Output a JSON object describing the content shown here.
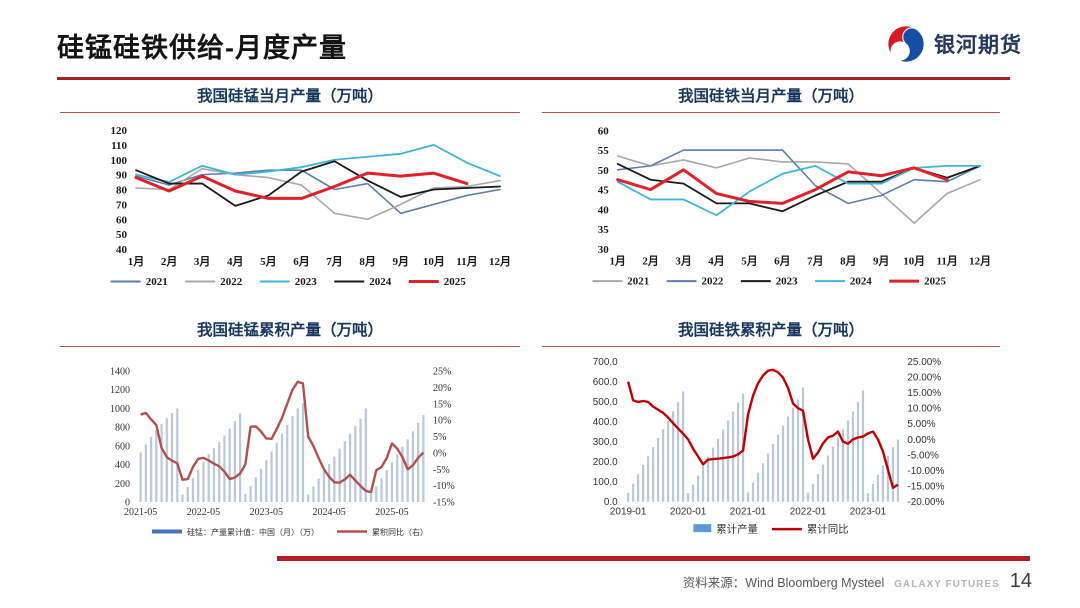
{
  "header": {
    "title": "硅锰硅铁供给-月度产量",
    "brand": "银河期货",
    "accent_color": "#b01e28"
  },
  "footer": {
    "source": "资料来源：Wind Bloomberg Mysteel",
    "brand_en": "GALAXY FUTURES",
    "page_number": "14"
  },
  "chart_data": [
    {
      "type": "line",
      "title": "我国硅锰当月产量（万吨）",
      "categories": [
        "1月",
        "2月",
        "3月",
        "4月",
        "5月",
        "6月",
        "7月",
        "8月",
        "9月",
        "10月",
        "11月",
        "12月"
      ],
      "ylim": [
        40,
        120
      ],
      "ystep": 10,
      "grid": false,
      "legend_position": "bottom",
      "series": [
        {
          "name": "2021",
          "color": "#5b7fad",
          "width": 1.6,
          "values": [
            89,
            83,
            90,
            91,
            93,
            93,
            80,
            84,
            64,
            70,
            76,
            80
          ]
        },
        {
          "name": "2022",
          "color": "#a8a8a8",
          "width": 1.6,
          "values": [
            81,
            80,
            94,
            90,
            88,
            83,
            64,
            60,
            70,
            81,
            82,
            86
          ]
        },
        {
          "name": "2023",
          "color": "#3fb5dc",
          "width": 1.8,
          "values": [
            90,
            85,
            96,
            90,
            92,
            95,
            100,
            102,
            104,
            110,
            98,
            89
          ]
        },
        {
          "name": "2024",
          "color": "#1a1a1a",
          "width": 1.8,
          "values": [
            93,
            84,
            84,
            69,
            76,
            92,
            99,
            86,
            75,
            80,
            81,
            82
          ]
        },
        {
          "name": "2025",
          "color": "#e02128",
          "width": 3,
          "values": [
            88,
            79,
            89,
            79,
            74,
            74,
            82,
            91,
            89,
            91,
            84,
            null
          ]
        }
      ]
    },
    {
      "type": "line",
      "title": "我国硅铁当月产量（万吨）",
      "categories": [
        "1月",
        "2月",
        "3月",
        "4月",
        "5月",
        "6月",
        "7月",
        "8月",
        "9月",
        "10月",
        "11月",
        "12月"
      ],
      "ylim": [
        30,
        60
      ],
      "ystep": 5,
      "grid": false,
      "legend_position": "bottom",
      "series": [
        {
          "name": "2021",
          "color": "#a8a8a8",
          "width": 1.6,
          "values": [
            53.5,
            51,
            52.5,
            50.5,
            53,
            52,
            52,
            51.5,
            44,
            36.5,
            44,
            47.5
          ]
        },
        {
          "name": "2022",
          "color": "#5b7fad",
          "width": 1.6,
          "values": [
            50,
            51,
            55,
            55,
            55,
            55,
            46,
            41.5,
            43.5,
            47.5,
            47,
            51
          ]
        },
        {
          "name": "2023",
          "color": "#1a1a1a",
          "width": 1.8,
          "values": [
            51.5,
            47.5,
            46.5,
            41.5,
            41.5,
            39.5,
            43.5,
            47,
            47,
            50.5,
            48,
            51
          ]
        },
        {
          "name": "2024",
          "color": "#3fb5dc",
          "width": 1.8,
          "values": [
            47,
            42.5,
            42.5,
            38.5,
            44.5,
            49,
            51,
            46.5,
            46.5,
            50.5,
            51,
            51
          ]
        },
        {
          "name": "2025",
          "color": "#e02128",
          "width": 3,
          "values": [
            47.5,
            45,
            50,
            44,
            42,
            41.5,
            45,
            49.5,
            48.5,
            50.5,
            47.5,
            null
          ]
        }
      ]
    },
    {
      "type": "bar-line",
      "title": "我国硅锰累积产量（万吨）",
      "x_labels": [
        "2021-05",
        "2022-05",
        "2023-05",
        "2024-05",
        "2025-05"
      ],
      "x_label_indices": [
        0,
        12,
        24,
        36,
        48
      ],
      "left_axis": {
        "min": 0,
        "max": 1400,
        "step": 200,
        "format": "int"
      },
      "right_axis": {
        "min": -15,
        "max": 25,
        "step": 5,
        "format": "pct0"
      },
      "grid": false,
      "legend_position": "bottom",
      "bars": {
        "name": "硅锰：产量累计值：中国（月）（万）",
        "color": "#b9c8dd",
        "legend_color": "#4472c4",
        "values": [
          530,
          615,
          695,
          770,
          835,
          895,
          950,
          1000,
          80,
          160,
          255,
          345,
          430,
          510,
          575,
          640,
          710,
          785,
          865,
          945,
          85,
          170,
          265,
          355,
          445,
          540,
          635,
          730,
          825,
          920,
          1000,
          1055,
          80,
          165,
          250,
          330,
          405,
          485,
          570,
          650,
          730,
          810,
          890,
          1000,
          85,
          165,
          255,
          340,
          425,
          510,
          590,
          670,
          755,
          845,
          930
        ]
      },
      "line": {
        "name": "累积同比（右）",
        "color": "#b2504f",
        "width": 2.4,
        "values": [
          11.7,
          12.2,
          10.2,
          8.5,
          1.5,
          -1.3,
          -2.4,
          -3.2,
          -8.2,
          -8.0,
          -4.3,
          -1.8,
          -1.5,
          -2.3,
          -3.3,
          -4.1,
          -5.7,
          -8.0,
          -7.5,
          -6.3,
          -3.5,
          8.0,
          8.1,
          6.5,
          4.4,
          4.3,
          7.3,
          10.7,
          15.0,
          19.3,
          21.7,
          21.2,
          5.0,
          2.1,
          -1.6,
          -5.0,
          -7.3,
          -9.0,
          -9.1,
          -8.1,
          -6.7,
          -8.4,
          -10.1,
          -11.6,
          -12.0,
          -5.3,
          -4.3,
          -1.6,
          2.9,
          1.3,
          -1.3,
          -5.0,
          -3.8,
          -1.5,
          0.1
        ]
      }
    },
    {
      "type": "bar-line",
      "title": "我国硅铁累积产量（万吨）",
      "x_labels": [
        "2019-01",
        "2020-01",
        "2021-01",
        "2022-01",
        "2023-01"
      ],
      "x_label_indices": [
        0,
        12,
        24,
        36,
        48
      ],
      "left_axis": {
        "min": 0,
        "max": 700,
        "step": 100,
        "format": "dec1"
      },
      "right_axis": {
        "min": -20,
        "max": 25,
        "step": 5,
        "format": "pct2"
      },
      "grid": false,
      "legend_position": "bottom",
      "bars": {
        "name": "累计产量",
        "color": "#b9c8dd",
        "legend_color": "#5b9bd5",
        "values": [
          45,
          90,
          137,
          183,
          228,
          273,
          318,
          362,
          405,
          450,
          498,
          550,
          44,
          85,
          130,
          178,
          224,
          270,
          315,
          360,
          405,
          450,
          495,
          540,
          47,
          95,
          145,
          192,
          240,
          288,
          335,
          380,
          425,
          468,
          510,
          570,
          45,
          90,
          138,
          185,
          230,
          275,
          320,
          362,
          405,
          450,
          498,
          555,
          43,
          88,
          135,
          182,
          228,
          272,
          310
        ]
      },
      "line": {
        "name": "累计同比",
        "color": "#c00000",
        "width": 2.4,
        "values": [
          18.5,
          12.5,
          12.0,
          12.3,
          12.0,
          10.5,
          9.5,
          8.5,
          7.0,
          5.2,
          3.5,
          1.8,
          0.0,
          -3.0,
          -5.5,
          -8.0,
          -6.5,
          -6.3,
          -6.2,
          -6.0,
          -5.8,
          -5.5,
          -4.8,
          -3.6,
          8.0,
          14.0,
          18.0,
          20.5,
          22.0,
          22.3,
          21.5,
          19.8,
          16.5,
          11.5,
          10.0,
          9.2,
          0.0,
          -6.2,
          -4.2,
          -1.3,
          0.6,
          1.2,
          2.5,
          -0.7,
          -1.4,
          0.0,
          0.6,
          0.9,
          1.9,
          2.5,
          0.0,
          -3.9,
          -9.7,
          -15.5,
          -14.5
        ]
      }
    }
  ]
}
